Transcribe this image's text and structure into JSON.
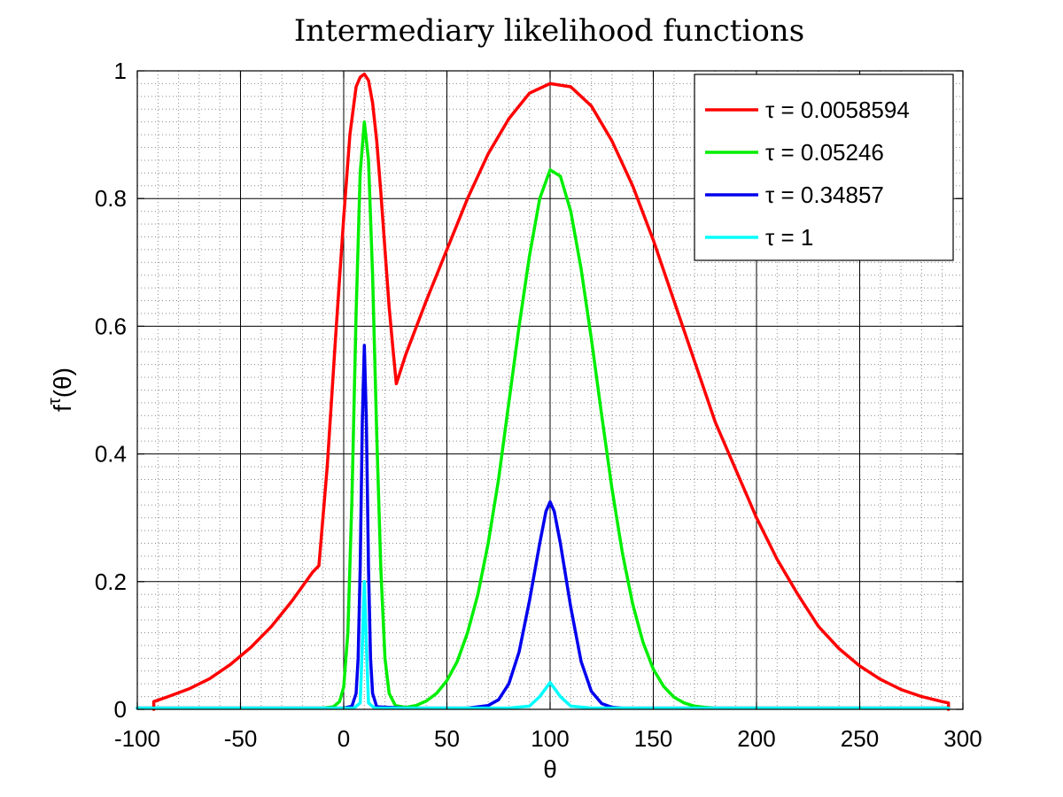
{
  "chart_data": {
    "type": "line",
    "title": "Intermediary likelihood functions",
    "xlabel": "θ",
    "ylabel_base": "f",
    "ylabel_sup": "τ",
    "ylabel_tail": "(θ)",
    "xlim": [
      -100,
      300
    ],
    "ylim": [
      0,
      1
    ],
    "xticks": [
      -100,
      -50,
      0,
      50,
      100,
      150,
      200,
      250,
      300
    ],
    "yticks": [
      0,
      0.2,
      0.4,
      0.6,
      0.8,
      1
    ],
    "xtick_labels": [
      "-100",
      "-50",
      "0",
      "50",
      "100",
      "150",
      "200",
      "250",
      "300"
    ],
    "ytick_labels": [
      "0",
      "0.2",
      "0.4",
      "0.6",
      "0.8",
      "1"
    ],
    "grid": true,
    "minor_grid": true,
    "legend_position": "top-right",
    "series": [
      {
        "name": "τ = 0.0058594",
        "color": "#ff0000",
        "x": [
          -92,
          -92,
          -85,
          -75,
          -65,
          -55,
          -45,
          -35,
          -25,
          -15,
          -12,
          -8,
          -4,
          0,
          3,
          6,
          8,
          10,
          12,
          14,
          16,
          18,
          20,
          22,
          24,
          25.5,
          30,
          40,
          50,
          60,
          70,
          80,
          90,
          100,
          110,
          120,
          130,
          140,
          150,
          160,
          170,
          180,
          190,
          200,
          210,
          220,
          230,
          240,
          250,
          260,
          270,
          280,
          290,
          293,
          293
        ],
        "y": [
          0,
          0.012,
          0.02,
          0.032,
          0.048,
          0.07,
          0.097,
          0.13,
          0.17,
          0.215,
          0.225,
          0.38,
          0.58,
          0.77,
          0.9,
          0.975,
          0.99,
          0.995,
          0.985,
          0.95,
          0.89,
          0.81,
          0.72,
          0.63,
          0.56,
          0.51,
          0.555,
          0.64,
          0.72,
          0.8,
          0.87,
          0.925,
          0.965,
          0.98,
          0.975,
          0.945,
          0.89,
          0.82,
          0.735,
          0.64,
          0.545,
          0.45,
          0.375,
          0.3,
          0.235,
          0.18,
          0.13,
          0.095,
          0.068,
          0.047,
          0.031,
          0.02,
          0.012,
          0.01,
          0
        ]
      },
      {
        "name": "τ = 0.05246",
        "color": "#00ee00",
        "x": [
          -100,
          -50,
          -10,
          -5,
          -2,
          0,
          2,
          4,
          6,
          8,
          10,
          12,
          14,
          16,
          18,
          20,
          22,
          25,
          30,
          35,
          40,
          45,
          50,
          55,
          60,
          65,
          70,
          75,
          80,
          85,
          90,
          95,
          100,
          105,
          110,
          115,
          120,
          125,
          130,
          135,
          140,
          145,
          150,
          155,
          160,
          165,
          170,
          175,
          180,
          200,
          250,
          293
        ],
        "y": [
          0.002,
          0.002,
          0.002,
          0.004,
          0.012,
          0.035,
          0.12,
          0.33,
          0.62,
          0.84,
          0.92,
          0.86,
          0.68,
          0.43,
          0.22,
          0.08,
          0.025,
          0.006,
          0.003,
          0.006,
          0.013,
          0.025,
          0.045,
          0.075,
          0.12,
          0.18,
          0.26,
          0.36,
          0.48,
          0.6,
          0.71,
          0.8,
          0.845,
          0.835,
          0.78,
          0.69,
          0.58,
          0.46,
          0.345,
          0.245,
          0.165,
          0.105,
          0.063,
          0.036,
          0.019,
          0.01,
          0.005,
          0.003,
          0.002,
          0.002,
          0.002,
          0.002
        ]
      },
      {
        "name": "τ = 0.34857",
        "color": "#0000ee",
        "x": [
          -100,
          0,
          4,
          6,
          7,
          8,
          9,
          10,
          11,
          12,
          13,
          14,
          16,
          30,
          60,
          70,
          75,
          80,
          85,
          90,
          95,
          98,
          100,
          102,
          105,
          110,
          115,
          120,
          125,
          130,
          135,
          293
        ],
        "y": [
          0.002,
          0.002,
          0.005,
          0.025,
          0.08,
          0.22,
          0.45,
          0.57,
          0.45,
          0.22,
          0.08,
          0.025,
          0.004,
          0.002,
          0.002,
          0.006,
          0.015,
          0.04,
          0.09,
          0.17,
          0.26,
          0.31,
          0.325,
          0.31,
          0.26,
          0.16,
          0.075,
          0.028,
          0.009,
          0.003,
          0.002,
          0.002
        ]
      },
      {
        "name": "τ = 1",
        "color": "#00ffff",
        "x": [
          -100,
          5,
          8,
          9,
          10,
          11,
          12,
          15,
          80,
          90,
          95,
          100,
          105,
          110,
          120,
          293
        ],
        "y": [
          0.002,
          0.002,
          0.01,
          0.1,
          0.2,
          0.1,
          0.01,
          0.002,
          0.002,
          0.005,
          0.02,
          0.042,
          0.02,
          0.005,
          0.002,
          0.002
        ]
      }
    ]
  }
}
